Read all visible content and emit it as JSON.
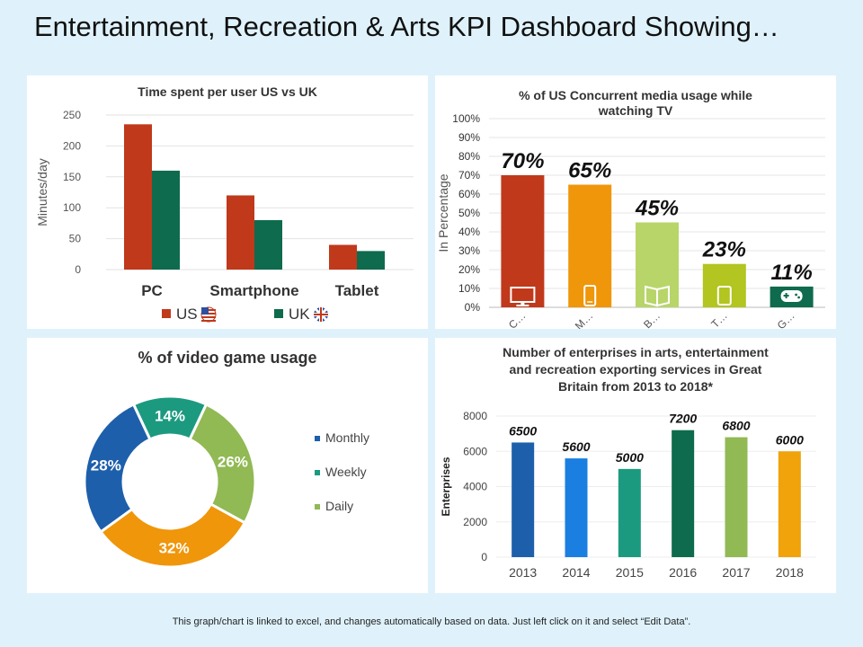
{
  "page": {
    "title": "Entertainment, Recreation & Arts KPI Dashboard Showing…",
    "footer": "This graph/chart is linked to excel, and changes automatically based on data. Just left click on it and select “Edit Data”."
  },
  "chart_data": [
    {
      "id": "time-spent",
      "type": "bar",
      "title": "Time spent per user US vs UK",
      "ylabel": "Minutes/day",
      "categories": [
        "PC",
        "Smartphone",
        "Tablet"
      ],
      "series": [
        {
          "name": "US",
          "values": [
            235,
            120,
            40
          ],
          "color": "#c0391b",
          "icon": "us-flag-icon"
        },
        {
          "name": "UK",
          "values": [
            160,
            80,
            30
          ],
          "color": "#0e6b4d",
          "icon": "uk-flag-icon"
        }
      ],
      "yticks": [
        "0",
        "50",
        "100",
        "150",
        "200",
        "250"
      ],
      "ylim": [
        0,
        250
      ],
      "grid": true,
      "legend": "bottom"
    },
    {
      "id": "media-usage",
      "type": "bar",
      "title": "% of US Concurrent media usage while watching TV",
      "ylabel": "In Percentage",
      "categories": [
        "C…",
        "M…",
        "B…",
        "T…",
        "G…"
      ],
      "values": [
        70,
        65,
        45,
        23,
        11
      ],
      "labels": [
        "70%",
        "65%",
        "45%",
        "23%",
        "11%"
      ],
      "colors": [
        "#c0391b",
        "#f0960a",
        "#b8d56a",
        "#b2c520",
        "#0e6b4d"
      ],
      "icons": [
        "monitor-icon",
        "smartphone-icon",
        "book-icon",
        "tablet-icon",
        "gamepad-icon"
      ],
      "yticks": [
        "0%",
        "10%",
        "20%",
        "30%",
        "40%",
        "50%",
        "60%",
        "70%",
        "80%",
        "90%",
        "100%"
      ],
      "ylim": [
        0,
        100
      ],
      "grid": true
    },
    {
      "id": "video-game",
      "type": "pie",
      "title": "% of video game usage",
      "slices": [
        {
          "label": "14%",
          "value": 14,
          "color": "#1c9a80"
        },
        {
          "label": "26%",
          "value": 26,
          "color": "#91b954"
        },
        {
          "label": "32%",
          "value": 32,
          "color": "#f0960a"
        },
        {
          "label": "28%",
          "value": 28,
          "color": "#1d5fab"
        }
      ],
      "legend_items": [
        {
          "name": "Monthly",
          "color": "#1d5fab"
        },
        {
          "name": "Weekly",
          "color": "#1c9a80"
        },
        {
          "name": "Daily",
          "color": "#91b954"
        }
      ],
      "legend": "right"
    },
    {
      "id": "enterprises",
      "type": "bar",
      "title": "Number of enterprises in arts, entertainment and recreation exporting services in Great Britain from 2013 to 2018*",
      "ylabel": "Enterprises",
      "categories": [
        "2013",
        "2014",
        "2015",
        "2016",
        "2017",
        "2018"
      ],
      "values": [
        6500,
        5600,
        5000,
        7200,
        6800,
        6000
      ],
      "labels": [
        "6500",
        "5600",
        "5000",
        "7200",
        "6800",
        "6000"
      ],
      "colors": [
        "#1d5fab",
        "#1a7fe0",
        "#1c9a80",
        "#0e6b4d",
        "#91b954",
        "#f0a30a"
      ],
      "yticks": [
        "0",
        "2000",
        "4000",
        "6000",
        "8000"
      ],
      "ylim": [
        0,
        8000
      ],
      "grid": true
    }
  ]
}
